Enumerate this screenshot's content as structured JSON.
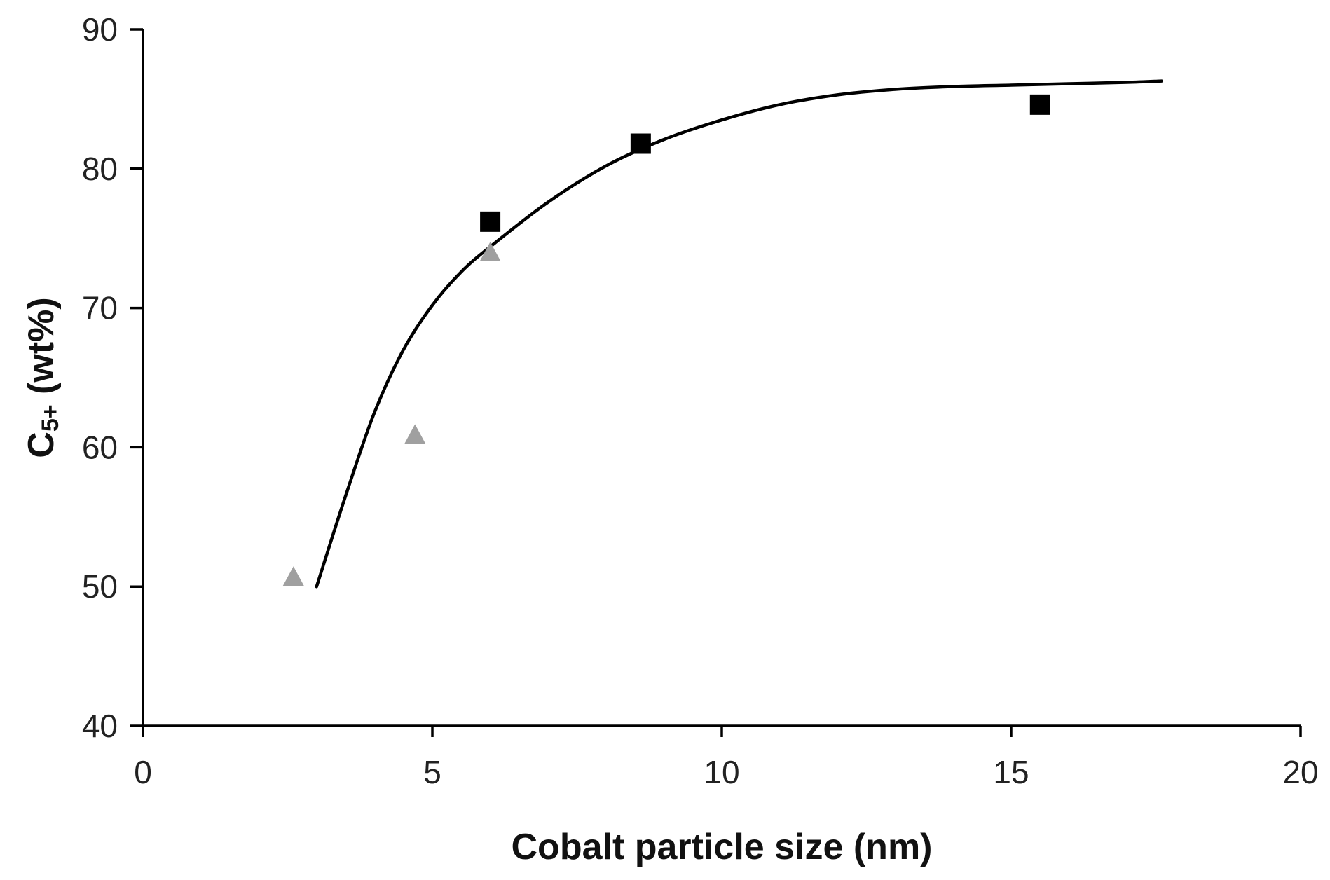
{
  "chart_data": {
    "type": "scatter",
    "xlabel": "Cobalt particle size (nm)",
    "ylabel": {
      "base": "C",
      "subscript": "5+",
      "suffix": " (wt%)"
    },
    "xlim": [
      0,
      20
    ],
    "ylim": [
      40,
      90
    ],
    "xticks": [
      0,
      5,
      10,
      15,
      20
    ],
    "yticks": [
      40,
      50,
      60,
      70,
      80,
      90
    ],
    "grid": false,
    "legend": "none",
    "series": [
      {
        "marker": "square",
        "color": "#000000",
        "points": [
          {
            "x": 6.0,
            "y": 76.2
          },
          {
            "x": 8.6,
            "y": 81.8
          },
          {
            "x": 15.5,
            "y": 84.6
          }
        ]
      },
      {
        "marker": "triangle",
        "color": "#a0a0a0",
        "points": [
          {
            "x": 2.6,
            "y": 50.7
          },
          {
            "x": 4.7,
            "y": 60.9
          },
          {
            "x": 6.0,
            "y": 74.0
          }
        ]
      }
    ],
    "trend_line": {
      "color": "#000000",
      "points": [
        {
          "x": 3.0,
          "y": 50.0
        },
        {
          "x": 3.5,
          "y": 56.5
        },
        {
          "x": 4.0,
          "y": 62.5
        },
        {
          "x": 4.5,
          "y": 67.0
        },
        {
          "x": 5.0,
          "y": 70.2
        },
        {
          "x": 5.5,
          "y": 72.6
        },
        {
          "x": 6.0,
          "y": 74.4
        },
        {
          "x": 7.0,
          "y": 77.6
        },
        {
          "x": 8.0,
          "y": 80.2
        },
        {
          "x": 9.0,
          "y": 82.1
        },
        {
          "x": 10.0,
          "y": 83.5
        },
        {
          "x": 11.0,
          "y": 84.6
        },
        {
          "x": 12.0,
          "y": 85.3
        },
        {
          "x": 13.0,
          "y": 85.7
        },
        {
          "x": 14.0,
          "y": 85.9
        },
        {
          "x": 15.0,
          "y": 86.0
        },
        {
          "x": 16.0,
          "y": 86.1
        },
        {
          "x": 17.0,
          "y": 86.2
        },
        {
          "x": 17.6,
          "y": 86.3
        }
      ]
    }
  }
}
